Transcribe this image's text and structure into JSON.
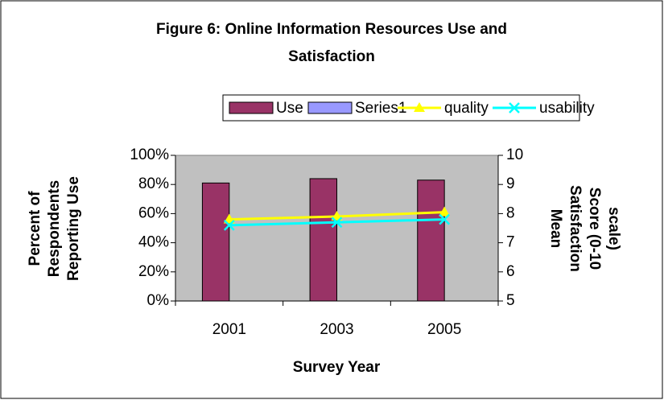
{
  "chart_data": {
    "type": "bar",
    "title": [
      "Figure 6: Online Information Resources Use and",
      "Satisfaction"
    ],
    "x_label": "Survey Year",
    "y_label": [
      "Percent of",
      "Respondents",
      "Reporting Use"
    ],
    "y2_label": [
      "Mean",
      "Satisfaction",
      "Score (0-10",
      "scale)"
    ],
    "categories": [
      "2001",
      "2003",
      "2005"
    ],
    "series": [
      {
        "name": "Use",
        "type": "bar",
        "color": "#993366",
        "values": [
          81,
          84,
          83
        ]
      },
      {
        "name": "Series1",
        "type": "bar",
        "color": "#9999ff",
        "values": [
          null,
          null,
          null
        ]
      },
      {
        "name": "quality",
        "type": "line",
        "marker": "triangle",
        "axis": "y2",
        "color": "#ffff00",
        "values": [
          7.8,
          7.9,
          8.05
        ]
      },
      {
        "name": "usability",
        "type": "line",
        "marker": "x",
        "axis": "y2",
        "color": "#00ffff",
        "values": [
          7.6,
          7.7,
          7.8
        ]
      }
    ],
    "ylim": [
      0,
      100
    ],
    "yticks": [
      {
        "value": 0,
        "label": "0%"
      },
      {
        "value": 20,
        "label": "20%"
      },
      {
        "value": 40,
        "label": "40%"
      },
      {
        "value": 60,
        "label": "60%"
      },
      {
        "value": 80,
        "label": "80%"
      },
      {
        "value": 100,
        "label": "100%"
      }
    ],
    "y2lim": [
      5,
      10
    ],
    "y2ticks": [
      5,
      6,
      7,
      8,
      9,
      10
    ],
    "grid": false,
    "legend": "top"
  }
}
